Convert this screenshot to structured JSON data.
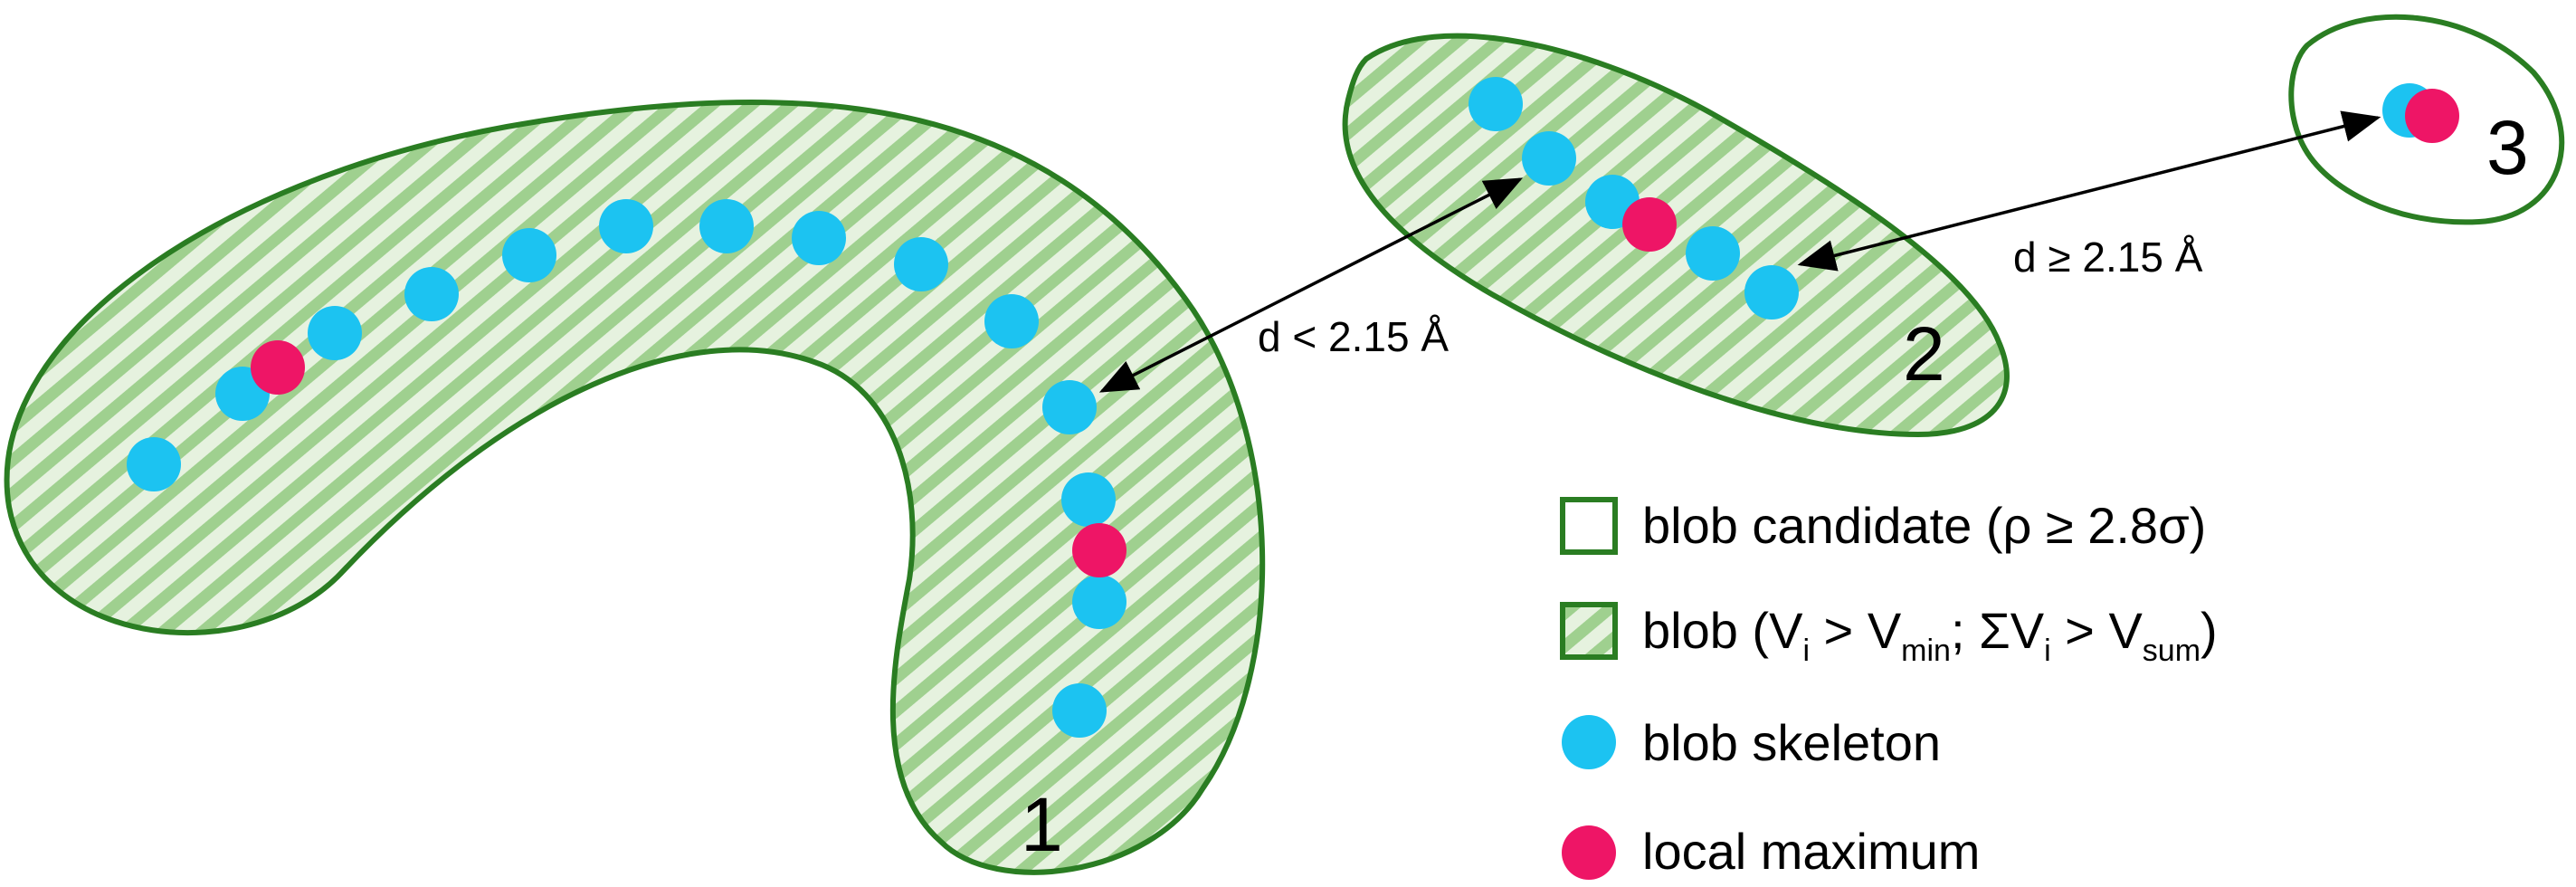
{
  "colors": {
    "outline": "#2a7d22",
    "hatch_bg": "#e6f2df",
    "hatch_line": "#9fd08f",
    "skeleton": "#1cc3f1",
    "maximum": "#ee1566",
    "text": "#000000"
  },
  "blobs": [
    {
      "label": "1"
    },
    {
      "label": "2"
    },
    {
      "label": "3"
    }
  ],
  "distances": {
    "near": "d < 2.15 Å",
    "far": "d ≥ 2.15 Å"
  },
  "legend": {
    "candidate": "blob candidate (ρ ≥ 2.8σ)",
    "blob_prefix": "blob (V",
    "blob_sub_i1": "i",
    "blob_gt1": " > V",
    "blob_sub_min": "min",
    "blob_sum": "; ΣV",
    "blob_sub_i2": "i",
    "blob_gt2": " > V",
    "blob_sub_sum": "sum",
    "blob_close": ")",
    "skeleton": "blob skeleton",
    "maximum": "local maximum"
  },
  "icons": [
    "outline-square-icon",
    "hatched-square-icon",
    "skeleton-dot-icon",
    "maximum-dot-icon"
  ]
}
